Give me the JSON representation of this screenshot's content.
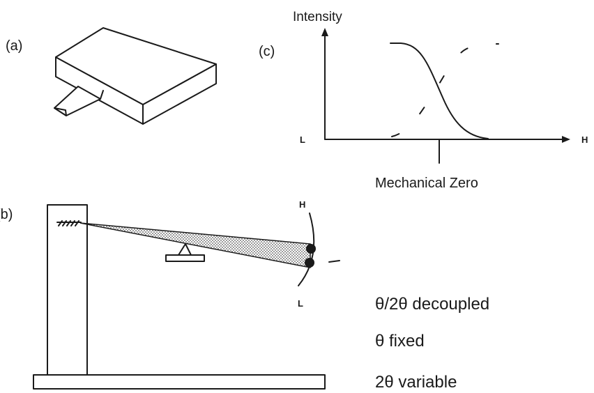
{
  "panels": {
    "a": {
      "label": "(a)"
    },
    "b": {
      "label": "(b)",
      "marker_high": "H",
      "marker_low": "L"
    },
    "c": {
      "label": "(c)",
      "y_axis_label": "Intensity",
      "x_left_label": "L",
      "x_right_label": "H",
      "zero_label": "Mechanical Zero"
    }
  },
  "notes": [
    "θ/2θ decoupled",
    "θ fixed",
    "2θ variable"
  ],
  "colors": {
    "ink": "#1a1a1a",
    "paper": "#ffffff",
    "stipple": "#555555"
  }
}
